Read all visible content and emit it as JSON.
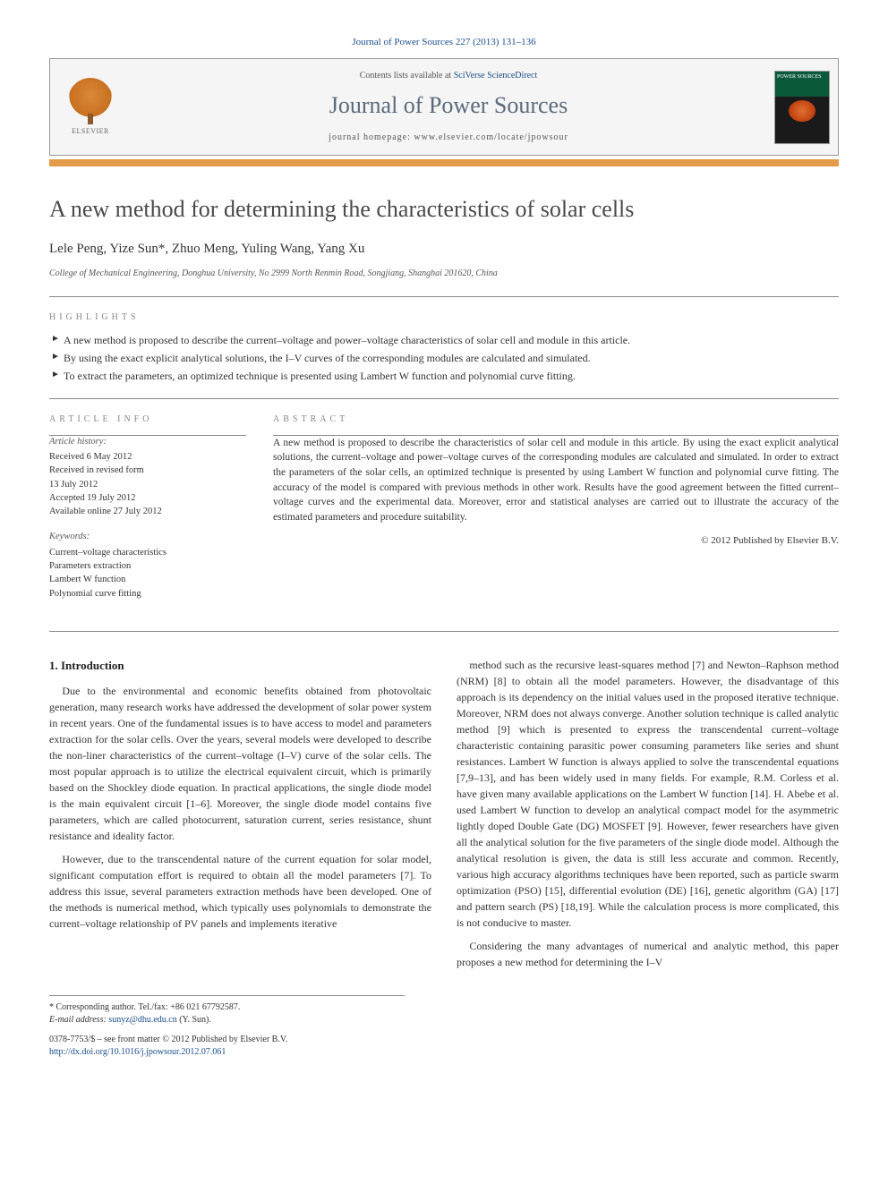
{
  "citation": "Journal of Power Sources 227 (2013) 131–136",
  "header": {
    "contents_prefix": "Contents lists available at ",
    "contents_link": "SciVerse ScienceDirect",
    "journal": "Journal of Power Sources",
    "homepage_prefix": "journal homepage: ",
    "homepage": "www.elsevier.com/locate/jpowsour",
    "publisher": "ELSEVIER",
    "cover_label": "POWER SOURCES"
  },
  "title": "A new method for determining the characteristics of solar cells",
  "authors": "Lele Peng, Yize Sun*, Zhuo Meng, Yuling Wang, Yang Xu",
  "affiliation": "College of Mechanical Engineering, Donghua University, No 2999 North Renmin Road, Songjiang, Shanghai 201620, China",
  "highlights_label": "HIGHLIGHTS",
  "highlights": [
    "A new method is proposed to describe the current–voltage and power–voltage characteristics of solar cell and module in this article.",
    "By using the exact explicit analytical solutions, the I–V curves of the corresponding modules are calculated and simulated.",
    "To extract the parameters, an optimized technique is presented using Lambert W function and polynomial curve fitting."
  ],
  "article_info_label": "ARTICLE INFO",
  "abstract_label": "ABSTRACT",
  "history": {
    "heading": "Article history:",
    "lines": [
      "Received 6 May 2012",
      "Received in revised form",
      "13 July 2012",
      "Accepted 19 July 2012",
      "Available online 27 July 2012"
    ]
  },
  "keywords": {
    "heading": "Keywords:",
    "items": [
      "Current–voltage characteristics",
      "Parameters extraction",
      "Lambert W function",
      "Polynomial curve fitting"
    ]
  },
  "abstract": "A new method is proposed to describe the characteristics of solar cell and module in this article. By using the exact explicit analytical solutions, the current–voltage and power–voltage curves of the corresponding modules are calculated and simulated. In order to extract the parameters of the solar cells, an optimized technique is presented by using Lambert W function and polynomial curve fitting. The accuracy of the model is compared with previous methods in other work. Results have the good agreement between the fitted current–voltage curves and the experimental data. Moreover, error and statistical analyses are carried out to illustrate the accuracy of the estimated parameters and procedure suitability.",
  "copyright": "© 2012 Published by Elsevier B.V.",
  "intro_heading": "1. Introduction",
  "intro_p1": "Due to the environmental and economic benefits obtained from photovoltaic generation, many research works have addressed the development of solar power system in recent years. One of the fundamental issues is to have access to model and parameters extraction for the solar cells. Over the years, several models were developed to describe the non-liner characteristics of the current–voltage (I–V) curve of the solar cells. The most popular approach is to utilize the electrical equivalent circuit, which is primarily based on the Shockley diode equation. In practical applications, the single diode model is the main equivalent circuit [1–6]. Moreover, the single diode model contains five parameters, which are called photocurrent, saturation current, series resistance, shunt resistance and ideality factor.",
  "intro_p2": "However, due to the transcendental nature of the current equation for solar model, significant computation effort is required to obtain all the model parameters [7]. To address this issue, several parameters extraction methods have been developed. One of the methods is numerical method, which typically uses polynomials to demonstrate the current–voltage relationship of PV panels and implements iterative",
  "intro_p3": "method such as the recursive least-squares method [7] and Newton–Raphson method (NRM) [8] to obtain all the model parameters. However, the disadvantage of this approach is its dependency on the initial values used in the proposed iterative technique. Moreover, NRM does not always converge. Another solution technique is called analytic method [9] which is presented to express the transcendental current–voltage characteristic containing parasitic power consuming parameters like series and shunt resistances. Lambert W function is always applied to solve the transcendental equations [7,9–13], and has been widely used in many fields. For example, R.M. Corless et al. have given many available applications on the Lambert W function [14]. H. Abebe et al. used Lambert W function to develop an analytical compact model for the asymmetric lightly doped Double Gate (DG) MOSFET [9]. However, fewer researchers have given all the analytical solution for the five parameters of the single diode model. Although the analytical resolution is given, the data is still less accurate and common. Recently, various high accuracy algorithms techniques have been reported, such as particle swarm optimization (PSO) [15], differential evolution (DE) [16], genetic algorithm (GA) [17] and pattern search (PS) [18,19]. While the calculation process is more complicated, this is not conducive to master.",
  "intro_p4": "Considering the many advantages of numerical and analytic method, this paper proposes a new method for determining the I–V",
  "footer": {
    "corr": "* Corresponding author. Tel./fax: +86 021 67792587.",
    "email_label": "E-mail address: ",
    "email": "sunyz@dhu.edu.cn",
    "email_who": " (Y. Sun).",
    "front_matter": "0378-7753/$ – see front matter © 2012 Published by Elsevier B.V.",
    "doi": "http://dx.doi.org/10.1016/j.jpowsour.2012.07.061"
  },
  "colors": {
    "link": "#1a4e8a",
    "accent_bar": "#e39b4a",
    "title_gray": "#4a4a4a",
    "journal_gray": "#5a6a7a"
  }
}
